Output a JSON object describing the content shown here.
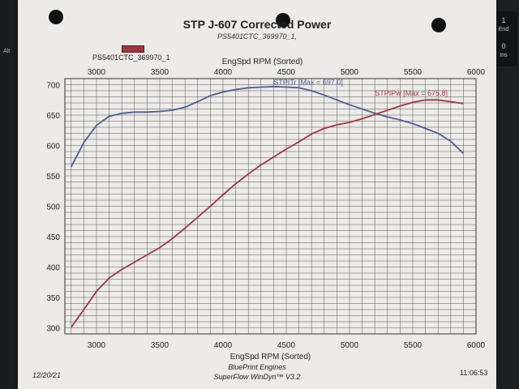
{
  "keyboard": {
    "end_number": "1",
    "end_label": "End",
    "ins_number": "0",
    "ins_label": "Ins",
    "alt_label": "Alt"
  },
  "chart_data": {
    "type": "line",
    "title": "STP J-607 Corrected Power",
    "subtitle": "PS5401CTC_369970_1,",
    "legend": [
      {
        "label": "PS5401CTC_369970_1",
        "color": "#a4343f",
        "placement": "top-left"
      }
    ],
    "xlabel_top": "EngSpd RPM   (Sorted)",
    "xlabel": "EngSpd RPM   (Sorted)",
    "ylabel": "",
    "xlim": [
      2750,
      6000
    ],
    "ylim": [
      290,
      710
    ],
    "top_xticks": [
      3000,
      3500,
      4000,
      4500,
      5000,
      5500,
      6000
    ],
    "xticks": [
      3000,
      3500,
      4000,
      4500,
      5000,
      5500,
      6000
    ],
    "yticks": [
      300,
      350,
      400,
      450,
      500,
      550,
      600,
      650,
      700
    ],
    "grid": true,
    "series": [
      {
        "name": "STPITr",
        "annotation": "STPITr [Max = 697.0]",
        "color": "#4a5f93",
        "x": [
          2800,
          2900,
          3000,
          3100,
          3200,
          3300,
          3400,
          3500,
          3600,
          3700,
          3800,
          3900,
          4000,
          4100,
          4200,
          4300,
          4400,
          4500,
          4600,
          4700,
          4800,
          4900,
          5000,
          5100,
          5200,
          5300,
          5400,
          5500,
          5600,
          5700,
          5800,
          5900
        ],
        "y": [
          565,
          605,
          633,
          648,
          653,
          655,
          655,
          656,
          658,
          663,
          672,
          682,
          688,
          692,
          695,
          696,
          697,
          696,
          695,
          690,
          683,
          675,
          667,
          660,
          653,
          647,
          642,
          636,
          628,
          620,
          607,
          587
        ]
      },
      {
        "name": "STPIPw",
        "annotation": "STPIPw [Max = 675.8]",
        "color": "#a4343f",
        "x": [
          2800,
          2900,
          3000,
          3100,
          3200,
          3300,
          3400,
          3500,
          3600,
          3700,
          3800,
          3900,
          4000,
          4100,
          4200,
          4300,
          4400,
          4500,
          4600,
          4700,
          4800,
          4900,
          5000,
          5100,
          5200,
          5300,
          5400,
          5500,
          5600,
          5700,
          5800,
          5900
        ],
        "y": [
          301,
          330,
          360,
          382,
          396,
          408,
          420,
          432,
          447,
          464,
          482,
          500,
          519,
          537,
          553,
          568,
          581,
          594,
          606,
          619,
          628,
          634,
          638,
          644,
          651,
          658,
          665,
          671,
          675,
          675,
          672,
          669
        ]
      }
    ]
  },
  "footer": {
    "date": "12/20/21",
    "time": "11:06:53",
    "company": "BluePrint Engines",
    "software": "SuperFlow WinDyn™ V3.2"
  }
}
